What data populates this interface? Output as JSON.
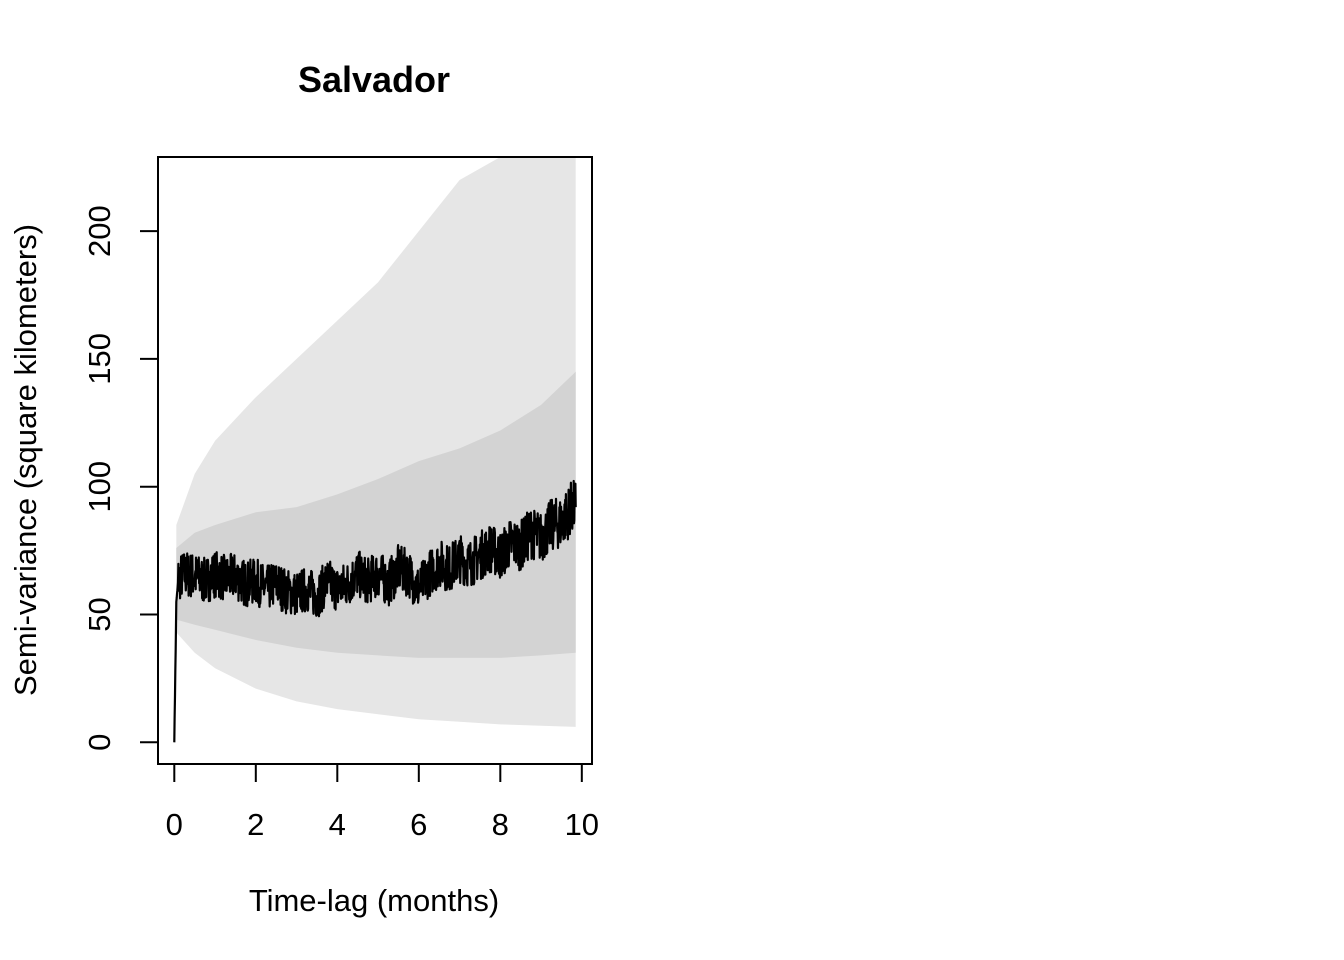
{
  "chart_data": {
    "type": "line",
    "title": "Salvador",
    "xlabel": "Time-lag (months)",
    "ylabel": "Semi-variance (square kilometers)",
    "xlim": [
      -0.4,
      10.25
    ],
    "ylim": [
      -8.5,
      229
    ],
    "x_ticks": [
      0,
      2,
      4,
      6,
      8,
      10
    ],
    "y_ticks": [
      0,
      50,
      100,
      150,
      200
    ],
    "grid": false,
    "legend": "none",
    "colors": {
      "line": "#000000",
      "inner_band": "#d3d3d3",
      "outer_band": "#e6e6e6",
      "frame": "#000000"
    },
    "semivariance": {
      "x": [
        0,
        0.05,
        0.1,
        0.25,
        0.5,
        0.75,
        1,
        1.25,
        1.5,
        1.75,
        2,
        2.25,
        2.5,
        2.75,
        3,
        3.25,
        3.5,
        3.75,
        4,
        4.25,
        4.5,
        4.75,
        5,
        5.25,
        5.5,
        5.75,
        6,
        6.25,
        6.5,
        6.75,
        7,
        7.25,
        7.5,
        7.75,
        8,
        8.25,
        8.5,
        8.75,
        9,
        9.25,
        9.5,
        9.75,
        9.85
      ],
      "y": [
        0,
        55,
        64,
        66,
        65,
        63,
        66,
        64,
        65,
        62,
        63,
        60,
        62,
        59,
        58,
        60,
        57,
        63,
        60,
        62,
        66,
        63,
        66,
        62,
        68,
        66,
        60,
        66,
        70,
        68,
        72,
        70,
        73,
        76,
        73,
        78,
        77,
        82,
        80,
        85,
        86,
        92,
        92
      ]
    },
    "inner_band": {
      "x": [
        0.05,
        0.5,
        1,
        2,
        3,
        4,
        5,
        6,
        7,
        8,
        9,
        9.85
      ],
      "lower": [
        48,
        46,
        44,
        40,
        37,
        35,
        34,
        33,
        33,
        33,
        34,
        35
      ],
      "upper": [
        76,
        82,
        85,
        90,
        92,
        97,
        103,
        110,
        115,
        122,
        132,
        145
      ]
    },
    "outer_band": {
      "x": [
        0.05,
        0.5,
        1,
        2,
        3,
        4,
        5,
        6,
        7,
        8,
        9,
        9.85
      ],
      "lower": [
        43,
        35,
        29,
        21,
        16,
        13,
        11,
        9,
        8,
        7,
        6.5,
        6
      ],
      "upper": [
        85,
        105,
        118,
        135,
        150,
        165,
        180,
        200,
        220,
        229,
        229,
        229
      ]
    }
  }
}
